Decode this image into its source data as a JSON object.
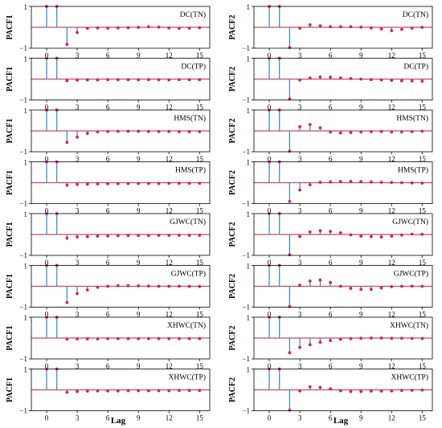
{
  "figure": {
    "xlabel_text": "Lag",
    "xticks": [
      0,
      3,
      6,
      9,
      12,
      15
    ],
    "ytick_top": "1",
    "ytick_bottom": "−1",
    "colors": {
      "stem": "#2f86c8",
      "marker": "#d6224c",
      "zero_line": "#e8404f",
      "band": "#9fc4e3",
      "frame": "#000000"
    }
  },
  "chart_data": [
    {
      "type": "stem",
      "panel_label": "DC(TN)",
      "ylabel": "PACF1",
      "xlim": [
        -1.5,
        16
      ],
      "ylim": [
        -1,
        1
      ],
      "x": [
        0,
        1,
        2,
        3,
        4,
        5,
        6,
        7,
        8,
        9,
        10,
        11,
        12,
        13,
        14,
        15
      ],
      "values": [
        1.0,
        1.0,
        -0.82,
        -0.25,
        -0.05,
        -0.03,
        -0.04,
        -0.03,
        -0.02,
        0.0,
        0.03,
        0.01,
        -0.03,
        -0.05,
        -0.04,
        -0.02
      ]
    },
    {
      "type": "stem",
      "panel_label": "DC(TN)",
      "ylabel": "PACF2",
      "xlim": [
        -1.5,
        16
      ],
      "ylim": [
        -1,
        1
      ],
      "x": [
        0,
        1,
        2,
        3,
        4,
        5,
        6,
        7,
        8,
        9,
        10,
        11,
        12,
        13,
        14,
        15
      ],
      "values": [
        1.0,
        1.0,
        -0.97,
        -0.04,
        0.12,
        0.07,
        0.03,
        0.03,
        0.03,
        0.01,
        -0.03,
        -0.08,
        -0.16,
        -0.1,
        -0.04,
        0.0
      ]
    },
    {
      "type": "stem",
      "panel_label": "DC(TP)",
      "ylabel": "PACF1",
      "xlim": [
        -1.5,
        16
      ],
      "ylim": [
        -1,
        1
      ],
      "x": [
        0,
        1,
        2,
        3,
        4,
        5,
        6,
        7,
        8,
        9,
        10,
        11,
        12,
        13,
        14,
        15
      ],
      "values": [
        1.0,
        1.0,
        -0.08,
        -0.05,
        -0.04,
        -0.04,
        -0.03,
        -0.03,
        -0.03,
        -0.03,
        -0.03,
        -0.03,
        -0.04,
        -0.03,
        -0.03,
        -0.03
      ]
    },
    {
      "type": "stem",
      "panel_label": "DC(TP)",
      "ylabel": "PACF2",
      "xlim": [
        -1.5,
        16
      ],
      "ylim": [
        -1,
        1
      ],
      "x": [
        0,
        1,
        2,
        3,
        4,
        5,
        6,
        7,
        8,
        9,
        10,
        11,
        12,
        13,
        14,
        15
      ],
      "values": [
        1.0,
        1.0,
        -0.95,
        -0.05,
        0.05,
        0.1,
        0.09,
        0.05,
        0.03,
        0.0,
        -0.03,
        -0.04,
        -0.06,
        -0.08,
        -0.09,
        -0.1
      ]
    },
    {
      "type": "stem",
      "panel_label": "HMS(TN)",
      "ylabel": "PACF1",
      "xlim": [
        -1.5,
        16
      ],
      "ylim": [
        -1,
        1
      ],
      "x": [
        0,
        1,
        2,
        3,
        4,
        5,
        6,
        7,
        8,
        9,
        10,
        11,
        12,
        13,
        14,
        15
      ],
      "values": [
        1.0,
        1.0,
        -0.55,
        -0.3,
        -0.12,
        -0.05,
        -0.03,
        -0.02,
        -0.02,
        -0.02,
        -0.03,
        -0.03,
        -0.03,
        -0.04,
        -0.04,
        -0.04
      ]
    },
    {
      "type": "stem",
      "panel_label": "HMS(TN)",
      "ylabel": "PACF2",
      "xlim": [
        -1.5,
        16
      ],
      "ylim": [
        -1,
        1
      ],
      "x": [
        0,
        1,
        2,
        3,
        4,
        5,
        6,
        7,
        8,
        9,
        10,
        11,
        12,
        13,
        14,
        15
      ],
      "values": [
        1.0,
        1.0,
        -0.97,
        0.2,
        0.3,
        0.15,
        -0.05,
        -0.1,
        -0.08,
        -0.05,
        -0.04,
        -0.03,
        -0.05,
        -0.05,
        -0.04,
        -0.02
      ]
    },
    {
      "type": "stem",
      "panel_label": "HMS(TP)",
      "ylabel": "PACF1",
      "xlim": [
        -1.5,
        16
      ],
      "ylim": [
        -1,
        1
      ],
      "x": [
        0,
        1,
        2,
        3,
        4,
        5,
        6,
        7,
        8,
        9,
        10,
        11,
        12,
        13,
        14,
        15
      ],
      "values": [
        1.0,
        1.0,
        -0.12,
        -0.08,
        -0.07,
        -0.06,
        -0.05,
        -0.05,
        -0.04,
        -0.04,
        -0.04,
        -0.04,
        -0.03,
        -0.03,
        -0.03,
        -0.03
      ]
    },
    {
      "type": "stem",
      "panel_label": "HMS(TP)",
      "ylabel": "PACF2",
      "xlim": [
        -1.5,
        16
      ],
      "ylim": [
        -1,
        1
      ],
      "x": [
        0,
        1,
        2,
        3,
        4,
        5,
        6,
        7,
        8,
        9,
        10,
        11,
        12,
        13,
        14,
        15
      ],
      "values": [
        1.0,
        1.0,
        -0.9,
        -0.35,
        -0.1,
        0.02,
        0.04,
        0.05,
        0.06,
        0.05,
        0.04,
        0.02,
        0.01,
        0.0,
        -0.01,
        -0.02
      ]
    },
    {
      "type": "stem",
      "panel_label": "GJWC(TN)",
      "ylabel": "PACF1",
      "xlim": [
        -1.5,
        16
      ],
      "ylim": [
        -1,
        1
      ],
      "x": [
        0,
        1,
        2,
        3,
        4,
        5,
        6,
        7,
        8,
        9,
        10,
        11,
        12,
        13,
        14,
        15
      ],
      "values": [
        1.0,
        1.0,
        -0.18,
        -0.12,
        -0.1,
        -0.08,
        -0.07,
        -0.06,
        -0.05,
        -0.05,
        -0.05,
        -0.04,
        -0.04,
        -0.04,
        -0.04,
        -0.04
      ]
    },
    {
      "type": "stem",
      "panel_label": "GJWC(TN)",
      "ylabel": "PACF2",
      "xlim": [
        -1.5,
        16
      ],
      "ylim": [
        -1,
        1
      ],
      "x": [
        0,
        1,
        2,
        3,
        4,
        5,
        6,
        7,
        8,
        9,
        10,
        11,
        12,
        13,
        14,
        15
      ],
      "values": [
        1.0,
        1.0,
        -0.97,
        -0.1,
        0.12,
        0.18,
        0.15,
        0.08,
        -0.02,
        -0.08,
        -0.1,
        -0.12,
        -0.08,
        -0.03,
        0.02,
        0.01
      ]
    },
    {
      "type": "stem",
      "panel_label": "GJWC(TP)",
      "ylabel": "PACF1",
      "xlim": [
        -1.5,
        16
      ],
      "ylim": [
        -1,
        1
      ],
      "x": [
        0,
        1,
        2,
        3,
        4,
        5,
        6,
        7,
        8,
        9,
        10,
        11,
        12,
        13,
        14,
        15
      ],
      "values": [
        1.0,
        1.0,
        -0.78,
        -0.35,
        -0.18,
        -0.05,
        0.0,
        0.03,
        0.03,
        0.02,
        0.01,
        0.0,
        0.0,
        0.0,
        -0.01,
        -0.01
      ]
    },
    {
      "type": "stem",
      "panel_label": "GJWC(TP)",
      "ylabel": "PACF2",
      "xlim": [
        -1.5,
        16
      ],
      "ylim": [
        -1,
        1
      ],
      "x": [
        0,
        1,
        2,
        3,
        4,
        5,
        6,
        7,
        8,
        9,
        10,
        11,
        12,
        13,
        14,
        15
      ],
      "values": [
        1.0,
        1.0,
        -0.97,
        0.05,
        0.25,
        0.3,
        0.18,
        0.0,
        -0.1,
        -0.15,
        -0.15,
        -0.08,
        -0.02,
        0.0,
        0.01,
        0.0
      ]
    },
    {
      "type": "stem",
      "panel_label": "XHWC(TN)",
      "ylabel": "PACF1",
      "xlim": [
        -1.5,
        16
      ],
      "ylim": [
        -1,
        1
      ],
      "x": [
        0,
        1,
        2,
        3,
        4,
        5,
        6,
        7,
        8,
        9,
        10,
        11,
        12,
        13,
        14,
        15
      ],
      "values": [
        1.0,
        1.0,
        -0.05,
        -0.04,
        -0.04,
        -0.04,
        -0.03,
        -0.03,
        -0.03,
        -0.03,
        -0.03,
        -0.03,
        -0.03,
        -0.03,
        -0.03,
        -0.03
      ]
    },
    {
      "type": "stem",
      "panel_label": "XHWC(TN)",
      "ylabel": "PACF2",
      "xlim": [
        -1.5,
        16
      ],
      "ylim": [
        -1,
        1
      ],
      "x": [
        0,
        1,
        2,
        3,
        4,
        5,
        6,
        7,
        8,
        9,
        10,
        11,
        12,
        13,
        14,
        15
      ],
      "values": [
        1.0,
        1.0,
        -0.7,
        -0.45,
        -0.32,
        -0.2,
        -0.12,
        -0.06,
        -0.03,
        -0.01,
        0.0,
        0.0,
        -0.01,
        -0.01,
        -0.02,
        -0.02
      ]
    },
    {
      "type": "stem",
      "panel_label": "XHWC(TP)",
      "ylabel": "PACF1",
      "xlim": [
        -1.5,
        16
      ],
      "ylim": [
        -1,
        1
      ],
      "x": [
        0,
        1,
        2,
        3,
        4,
        5,
        6,
        7,
        8,
        9,
        10,
        11,
        12,
        13,
        14,
        15
      ],
      "values": [
        1.0,
        1.0,
        -0.12,
        -0.08,
        -0.06,
        -0.05,
        -0.05,
        -0.05,
        -0.04,
        -0.04,
        -0.04,
        -0.04,
        -0.04,
        -0.03,
        -0.03,
        -0.03
      ]
    },
    {
      "type": "stem",
      "panel_label": "XHWC(TP)",
      "ylabel": "PACF2",
      "xlim": [
        -1.5,
        16
      ],
      "ylim": [
        -1,
        1
      ],
      "x": [
        0,
        1,
        2,
        3,
        4,
        5,
        6,
        7,
        8,
        9,
        10,
        11,
        12,
        13,
        14,
        15
      ],
      "values": [
        1.0,
        1.0,
        -0.97,
        -0.05,
        0.15,
        0.12,
        0.05,
        -0.04,
        -0.08,
        -0.08,
        -0.06,
        -0.06,
        -0.05,
        -0.03,
        -0.02,
        -0.01
      ]
    }
  ]
}
